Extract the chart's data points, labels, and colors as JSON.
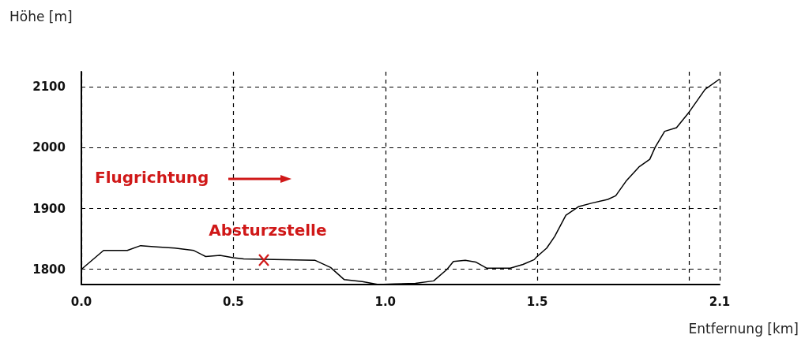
{
  "chart_data": {
    "type": "line",
    "xlabel": "Entfernung [km]",
    "ylabel": "Höhe [m]",
    "annotations": [
      "Flugrichtung",
      {
        "text": "Absturzstelle",
        "x": 0.6,
        "y": 1815
      }
    ],
    "x": [
      0,
      0.073,
      0.151,
      0.195,
      0.247,
      0.307,
      0.37,
      0.409,
      0.456,
      0.5,
      0.534,
      0.768,
      0.82,
      0.865,
      0.924,
      0.977,
      1.029,
      1.099,
      1.159,
      1.203,
      1.224,
      1.263,
      1.297,
      1.333,
      1.411,
      1.453,
      1.49,
      1.497,
      1.531,
      1.557,
      1.594,
      1.635,
      1.68,
      1.732,
      1.758,
      1.792,
      1.836,
      1.87,
      1.888,
      1.919,
      1.958,
      2.0,
      2.052,
      2.1
    ],
    "series": [
      {
        "color": "#000000",
        "values": [
          1800,
          1831,
          1831,
          1839,
          1837,
          1835,
          1831,
          1821,
          1823,
          1819,
          1817,
          1815,
          1803,
          1783,
          1780,
          1775,
          1776,
          1777,
          1781,
          1800,
          1813,
          1815,
          1812,
          1802,
          1802,
          1808,
          1816,
          1820,
          1835,
          1854,
          1889,
          1903,
          1909,
          1915,
          1921,
          1945,
          1969,
          1981,
          2001,
          2027,
          2033,
          2059,
          2096,
          2113
        ]
      }
    ],
    "xlim": [
      0,
      2.1
    ],
    "xticks": [
      {
        "value": 0,
        "label": "0.0"
      },
      {
        "value": 0.5,
        "label": "0.5"
      },
      {
        "value": 1,
        "label": "1.0"
      },
      {
        "value": 1.5,
        "label": "1.5"
      },
      {
        "value": 2,
        "label": null
      },
      {
        "value": 2.1,
        "label": "2.1"
      }
    ],
    "ylim": [
      1775,
      2125
    ],
    "yticks": [
      1800,
      1900,
      2000,
      2100
    ],
    "grid": true,
    "marker": "none",
    "line_style": "solid"
  }
}
